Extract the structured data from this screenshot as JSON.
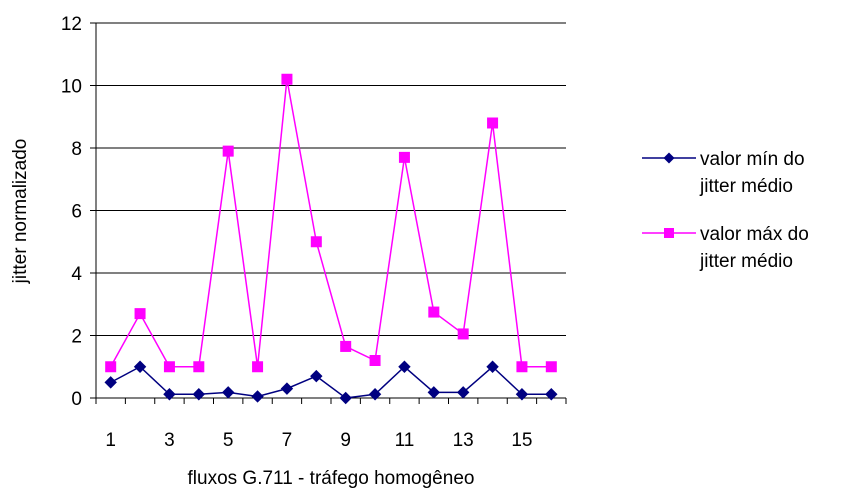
{
  "chart_data": {
    "type": "line",
    "title": "",
    "xlabel": "fluxos G.711 - tráfego homogêneo",
    "ylabel": "jitter normalizado",
    "x": [
      1,
      2,
      3,
      4,
      5,
      6,
      7,
      8,
      9,
      10,
      11,
      12,
      13,
      14,
      15,
      16
    ],
    "x_tick_labels": [
      "1",
      "3",
      "5",
      "7",
      "9",
      "11",
      "13",
      "15"
    ],
    "x_tick_values": [
      1,
      3,
      5,
      7,
      9,
      11,
      13,
      15
    ],
    "ylim": [
      0,
      12
    ],
    "y_ticks": [
      0,
      2,
      4,
      6,
      8,
      10,
      12
    ],
    "grid": "horizontal",
    "legend_position": "right",
    "series": [
      {
        "name_line1": "valor mín do",
        "name_line2": "jitter médio",
        "color": "#000080",
        "marker": "diamond",
        "values": [
          0.5,
          1.0,
          0.12,
          0.12,
          0.18,
          0.05,
          0.3,
          0.7,
          0.0,
          0.12,
          1.0,
          0.18,
          0.18,
          1.0,
          0.12,
          0.12
        ]
      },
      {
        "name_line1": "valor máx do",
        "name_line2": "jitter médio",
        "color": "#ff00ff",
        "marker": "square",
        "values": [
          1.0,
          2.7,
          1.0,
          1.0,
          7.9,
          1.0,
          10.2,
          5.0,
          1.65,
          1.2,
          7.7,
          2.75,
          2.05,
          8.8,
          1.0,
          1.0
        ]
      }
    ]
  }
}
